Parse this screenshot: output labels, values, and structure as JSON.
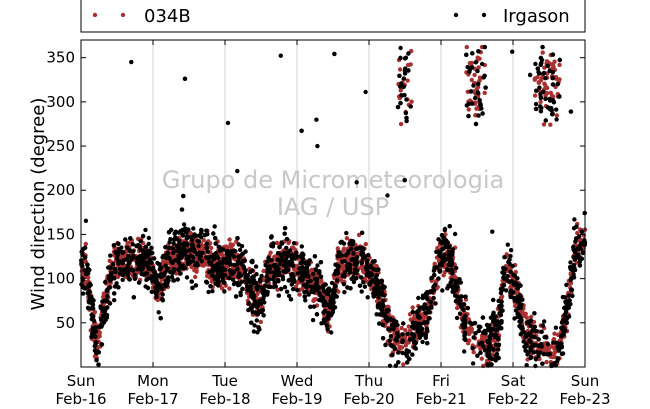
{
  "chart_data": {
    "type": "scatter",
    "ylabel": "Wind direction (degree)",
    "ylim": [
      0,
      370
    ],
    "xlim_days": [
      0,
      7
    ],
    "yticks": [
      50,
      100,
      150,
      200,
      250,
      300,
      350
    ],
    "x_ticks": [
      {
        "day": "Sun",
        "date": "Feb-16"
      },
      {
        "day": "Mon",
        "date": "Feb-17"
      },
      {
        "day": "Tue",
        "date": "Feb-18"
      },
      {
        "day": "Wed",
        "date": "Feb-19"
      },
      {
        "day": "Thu",
        "date": "Feb-20"
      },
      {
        "day": "Fri",
        "date": "Feb-21"
      },
      {
        "day": "Sat",
        "date": "Feb-22"
      },
      {
        "day": "Sun",
        "date": "Feb-23"
      }
    ],
    "grid": "vertical",
    "legend_position": "top",
    "watermark": [
      "Grupo de Micrometeorologia",
      "IAG / USP"
    ],
    "series": [
      {
        "name": "034B",
        "color": "#a83232"
      },
      {
        "name": "Irgason",
        "color": "#000000"
      }
    ]
  }
}
